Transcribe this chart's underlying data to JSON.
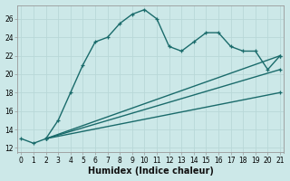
{
  "xlabel": "Humidex (Indice chaleur)",
  "bg_color": "#cce8e8",
  "grid_color": "#b8d8d8",
  "line_color": "#1a6b6b",
  "x_ticks": [
    0,
    1,
    2,
    3,
    4,
    5,
    6,
    7,
    8,
    9,
    10,
    11,
    12,
    13,
    14,
    15,
    16,
    17,
    18,
    19,
    20,
    21
  ],
  "ylim": [
    11.5,
    27.5
  ],
  "xlim": [
    -0.3,
    21.3
  ],
  "line1_x": [
    0,
    1,
    2,
    3,
    4,
    5,
    6,
    7,
    8,
    9,
    10,
    11,
    12,
    13,
    14,
    15,
    16,
    17,
    18,
    19,
    20,
    21
  ],
  "line1_y": [
    13,
    12.5,
    13,
    15,
    18,
    21,
    23.5,
    24,
    25.5,
    26.5,
    27,
    26,
    23,
    22.5,
    23.5,
    24.5,
    24.5,
    23,
    22.5,
    22.5,
    20.5,
    22
  ],
  "line2_x": [
    2,
    21
  ],
  "line2_y": [
    13,
    22
  ],
  "line3_x": [
    2,
    21
  ],
  "line3_y": [
    13,
    20.5
  ],
  "line4_x": [
    2,
    21
  ],
  "line4_y": [
    13,
    18
  ],
  "marker": "+",
  "markersize": 3,
  "linewidth": 1.0,
  "xlabel_fontsize": 7,
  "tick_fontsize": 5.5,
  "ytick_values": [
    12,
    14,
    16,
    18,
    20,
    22,
    24,
    26
  ]
}
